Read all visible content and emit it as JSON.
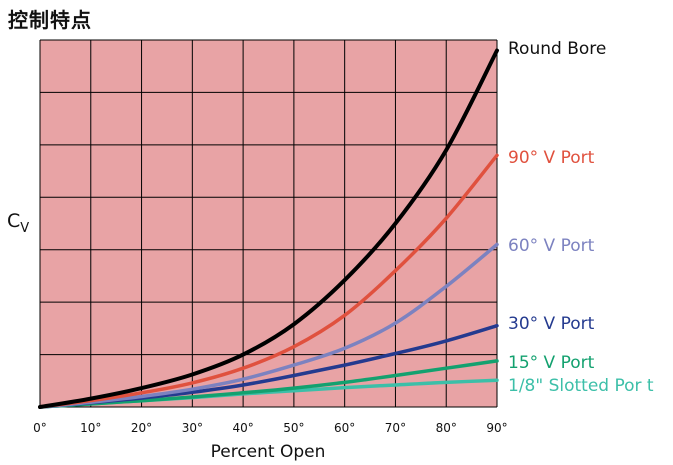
{
  "heading": "控制特点",
  "chart_data": {
    "type": "line",
    "title": "控制特点",
    "xlabel": "Percent Open",
    "ylabel_main": "C",
    "ylabel_sub": "V",
    "x_ticks": [
      "0°",
      "10°",
      "20°",
      "30°",
      "40°",
      "50°",
      "60°",
      "70°",
      "80°",
      "90°"
    ],
    "xlim": [
      0,
      90
    ],
    "ylim": [
      0,
      7
    ],
    "grid": true,
    "legend": "right-end labels",
    "colors": {
      "background": "#e8a3a5",
      "grid": "#000000"
    },
    "x": [
      0,
      10,
      20,
      30,
      40,
      50,
      60,
      70,
      80,
      90
    ],
    "series": [
      {
        "name": "Round Bore",
        "color": "#000000",
        "values": [
          0,
          0.16,
          0.36,
          0.62,
          1.0,
          1.58,
          2.42,
          3.5,
          4.9,
          6.8
        ]
      },
      {
        "name": "90° V Port",
        "color": "#e0513e",
        "values": [
          0,
          0.12,
          0.27,
          0.46,
          0.74,
          1.15,
          1.75,
          2.6,
          3.6,
          4.8
        ]
      },
      {
        "name": "60° V Port",
        "color": "#7c82c0",
        "values": [
          0,
          0.09,
          0.2,
          0.34,
          0.53,
          0.8,
          1.12,
          1.6,
          2.3,
          3.1
        ]
      },
      {
        "name": "30° V Port",
        "color": "#243a8f",
        "values": [
          0,
          0.08,
          0.17,
          0.28,
          0.42,
          0.6,
          0.8,
          1.02,
          1.26,
          1.55
        ]
      },
      {
        "name": "15° V Port",
        "color": "#13a16f",
        "values": [
          0,
          0.06,
          0.12,
          0.19,
          0.27,
          0.36,
          0.47,
          0.6,
          0.74,
          0.88
        ]
      },
      {
        "name": "1/8\" Slotted Por t",
        "color": "#3cbfa8",
        "values": [
          0,
          0.06,
          0.12,
          0.18,
          0.25,
          0.31,
          0.37,
          0.42,
          0.47,
          0.51
        ]
      }
    ]
  }
}
